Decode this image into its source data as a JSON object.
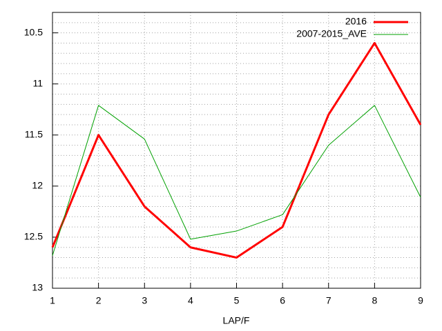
{
  "chart_data": {
    "type": "line",
    "x_label": "LAP/F",
    "x": [
      1,
      2,
      3,
      4,
      5,
      6,
      7,
      8,
      9
    ],
    "xlim": [
      1,
      9
    ],
    "xticks": [
      1,
      2,
      3,
      4,
      5,
      6,
      7,
      8,
      9
    ],
    "ylim": [
      13,
      10.3
    ],
    "yticks": [
      10.5,
      11,
      11.5,
      12,
      12.5,
      13
    ],
    "yminorticks": [
      10.4,
      10.6,
      10.7,
      10.8,
      10.9,
      11.1,
      11.2,
      11.3,
      11.4,
      11.6,
      11.7,
      11.8,
      11.9,
      12.1,
      12.2,
      12.3,
      12.4,
      12.6,
      12.7,
      12.8,
      12.9
    ],
    "y_inverted": true,
    "grid": true,
    "legend": "top-right",
    "series": [
      {
        "name": "2016",
        "color": "#ff0000",
        "width": 3,
        "values": [
          12.6,
          11.5,
          12.2,
          12.6,
          12.7,
          12.4,
          11.3,
          10.6,
          11.4
        ]
      },
      {
        "name": "2007-2015_AVE",
        "color": "#00a000",
        "width": 1,
        "values": [
          12.68,
          11.21,
          11.54,
          12.52,
          12.44,
          12.28,
          11.6,
          11.21,
          12.11
        ]
      }
    ]
  }
}
